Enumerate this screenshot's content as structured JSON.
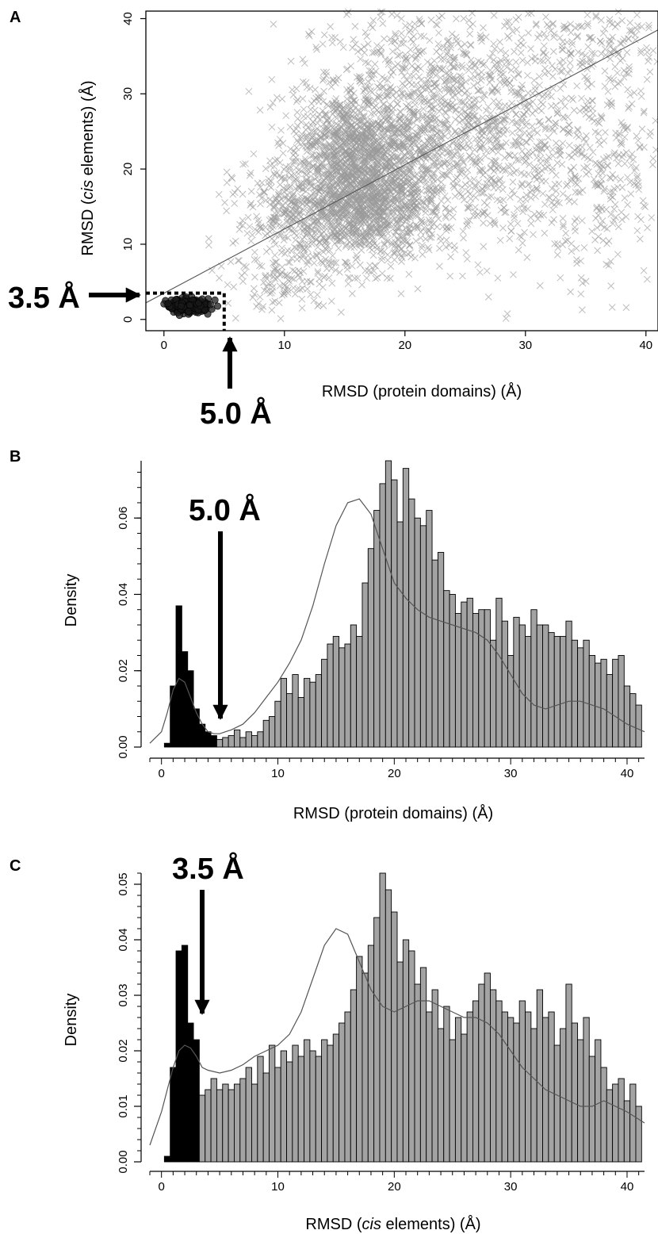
{
  "chart_data": [
    {
      "panel": "A",
      "type": "scatter",
      "xlabel": "RMSD (protein domains) (Å)",
      "ylabel_parts": [
        "RMSD (",
        "cis",
        " elements) (Å)"
      ],
      "xlim": [
        -1.5,
        41
      ],
      "ylim": [
        -1.5,
        41
      ],
      "xticks": [
        0,
        10,
        20,
        30,
        40
      ],
      "yticks": [
        0,
        10,
        20,
        30,
        40
      ],
      "threshold_x": 5.0,
      "threshold_y": 3.5,
      "annot_x": "5.0 Å",
      "annot_y": "3.5 Å",
      "fit_line": {
        "x": [
          -1.5,
          41
        ],
        "y": [
          2.2,
          38.5
        ]
      },
      "series": [
        {
          "marker": "x",
          "color": "#9a9a9a",
          "clusters": [
            {
              "cx": 17,
              "cy": 16,
              "sx": 3.0,
              "sy": 4.0,
              "n": 1300
            },
            {
              "cx": 15.5,
              "cy": 24,
              "sx": 2.5,
              "sy": 3.0,
              "n": 600
            },
            {
              "cx": 20,
              "cy": 30,
              "sx": 4.5,
              "sy": 6.0,
              "n": 550
            },
            {
              "cx": 25,
              "cy": 22,
              "sx": 5.5,
              "sy": 7.0,
              "n": 700
            },
            {
              "cx": 12,
              "cy": 14,
              "sx": 3.0,
              "sy": 3.5,
              "n": 450
            },
            {
              "cx": 30,
              "cy": 28,
              "sx": 6.0,
              "sy": 8.0,
              "n": 400
            },
            {
              "cx": 36,
              "cy": 18,
              "sx": 3.0,
              "sy": 7.0,
              "n": 200
            },
            {
              "cx": 10,
              "cy": 5,
              "sx": 2.5,
              "sy": 2.0,
              "n": 120
            },
            {
              "cx": 36,
              "cy": 37,
              "sx": 4.0,
              "sy": 3.0,
              "n": 150
            }
          ]
        },
        {
          "marker": "o",
          "color": "#1a1a1a",
          "clusters": [
            {
              "cx": 2.0,
              "cy": 1.8,
              "sx": 0.9,
              "sy": 0.45,
              "n": 220
            }
          ]
        }
      ]
    },
    {
      "panel": "B",
      "type": "bar",
      "xlabel": "RMSD (protein domains) (Å)",
      "ylabel": "Density",
      "bin_start": 0.5,
      "bin_width": 0.5,
      "xlim": [
        -1,
        41.5
      ],
      "ylim": [
        0,
        0.075
      ],
      "xticks": [
        0,
        10,
        20,
        30,
        40
      ],
      "yticks": [
        0.0,
        0.02,
        0.04,
        0.06
      ],
      "ytick_labels": [
        "0.00",
        "0.02",
        "0.04",
        "0.06"
      ],
      "threshold": 5.0,
      "annot": "5.0 Å",
      "below_color": "#000000",
      "above_color": "#a3a3a3",
      "values": [
        0.001,
        0.016,
        0.037,
        0.025,
        0.02,
        0.01,
        0.006,
        0.004,
        0.003,
        0.002,
        0.0025,
        0.003,
        0.0045,
        0.0025,
        0.004,
        0.003,
        0.004,
        0.007,
        0.008,
        0.012,
        0.018,
        0.014,
        0.019,
        0.013,
        0.018,
        0.017,
        0.019,
        0.023,
        0.027,
        0.029,
        0.026,
        0.027,
        0.032,
        0.029,
        0.043,
        0.052,
        0.062,
        0.069,
        0.075,
        0.07,
        0.059,
        0.073,
        0.065,
        0.06,
        0.058,
        0.062,
        0.049,
        0.051,
        0.041,
        0.04,
        0.035,
        0.038,
        0.039,
        0.035,
        0.036,
        0.036,
        0.028,
        0.039,
        0.033,
        0.024,
        0.034,
        0.032,
        0.029,
        0.036,
        0.032,
        0.032,
        0.03,
        0.029,
        0.029,
        0.033,
        0.028,
        0.026,
        0.028,
        0.024,
        0.022,
        0.023,
        0.019,
        0.023,
        0.024,
        0.016,
        0.014,
        0.011,
        0.012,
        0.01,
        0.012,
        0.009,
        0.013,
        0.008,
        0.009,
        0.008,
        0.015,
        0.009,
        0.011,
        0.01,
        0.01,
        0.011,
        0.009,
        0.012,
        0.01,
        0.007,
        0.013,
        0.01,
        0.008,
        0.011,
        0.007,
        0.012,
        0.007,
        0.01,
        0.008,
        0.011,
        0.005,
        0.007,
        0.004
      ],
      "density_curve": {
        "x": [
          -1,
          0,
          0.5,
          1,
          1.5,
          2,
          2.5,
          3,
          3.5,
          4,
          4.5,
          5,
          5.5,
          6,
          7,
          8,
          9,
          10,
          11,
          12,
          13,
          14,
          15,
          16,
          17,
          18,
          19,
          20,
          21,
          22,
          23,
          24,
          25,
          26,
          27,
          28,
          29,
          30,
          31,
          32,
          33,
          34,
          35,
          36,
          37,
          38,
          39,
          40,
          41.5
        ],
        "y": [
          0.001,
          0.004,
          0.009,
          0.015,
          0.018,
          0.017,
          0.013,
          0.009,
          0.006,
          0.004,
          0.0035,
          0.0035,
          0.004,
          0.0045,
          0.006,
          0.009,
          0.013,
          0.017,
          0.022,
          0.028,
          0.037,
          0.048,
          0.058,
          0.064,
          0.065,
          0.061,
          0.052,
          0.043,
          0.039,
          0.036,
          0.034,
          0.033,
          0.032,
          0.031,
          0.03,
          0.028,
          0.024,
          0.019,
          0.014,
          0.011,
          0.01,
          0.011,
          0.012,
          0.012,
          0.011,
          0.01,
          0.008,
          0.006,
          0.004
        ]
      }
    },
    {
      "panel": "C",
      "type": "bar",
      "xlabel_parts": [
        "RMSD (",
        "cis",
        " elements) (Å)"
      ],
      "ylabel": "Density",
      "bin_start": 0.5,
      "bin_width": 0.5,
      "xlim": [
        -1,
        41.5
      ],
      "ylim": [
        0,
        0.052
      ],
      "xticks": [
        0,
        10,
        20,
        30,
        40
      ],
      "yticks": [
        0.0,
        0.01,
        0.02,
        0.03,
        0.04,
        0.05
      ],
      "ytick_labels": [
        "0.00",
        "0.01",
        "0.02",
        "0.03",
        "0.04",
        "0.05"
      ],
      "threshold": 3.5,
      "annot": "3.5 Å",
      "below_color": "#000000",
      "above_color": "#a3a3a3",
      "values": [
        0.001,
        0.017,
        0.038,
        0.039,
        0.025,
        0.022,
        0.012,
        0.013,
        0.015,
        0.013,
        0.014,
        0.013,
        0.014,
        0.015,
        0.017,
        0.014,
        0.019,
        0.016,
        0.021,
        0.017,
        0.02,
        0.018,
        0.021,
        0.019,
        0.022,
        0.02,
        0.019,
        0.022,
        0.021,
        0.023,
        0.025,
        0.027,
        0.031,
        0.037,
        0.034,
        0.039,
        0.044,
        0.052,
        0.049,
        0.045,
        0.036,
        0.04,
        0.038,
        0.032,
        0.035,
        0.027,
        0.031,
        0.024,
        0.028,
        0.022,
        0.026,
        0.023,
        0.027,
        0.029,
        0.032,
        0.034,
        0.031,
        0.029,
        0.027,
        0.026,
        0.025,
        0.029,
        0.027,
        0.024,
        0.031,
        0.026,
        0.027,
        0.021,
        0.024,
        0.032,
        0.025,
        0.022,
        0.026,
        0.019,
        0.022,
        0.017,
        0.013,
        0.014,
        0.015,
        0.011,
        0.014,
        0.01,
        0.012,
        0.008,
        0.009,
        0.01,
        0.012,
        0.011,
        0.008,
        0.007,
        0.009,
        0.01,
        0.007,
        0.006,
        0.009,
        0.011,
        0.008,
        0.012,
        0.007,
        0.015,
        0.011,
        0.01,
        0.009,
        0.011,
        0.006,
        0.01,
        0.008,
        0.008,
        0.006,
        0.008,
        0.01,
        0.006,
        0.008
      ],
      "density_curve": {
        "x": [
          -1,
          0,
          0.5,
          1,
          1.5,
          2,
          2.5,
          3,
          3.5,
          4,
          5,
          6,
          7,
          8,
          9,
          10,
          11,
          12,
          13,
          14,
          15,
          16,
          17,
          18,
          19,
          20,
          21,
          22,
          23,
          24,
          25,
          26,
          27,
          28,
          29,
          30,
          31,
          32,
          33,
          34,
          35,
          36,
          37,
          38,
          39,
          40,
          41.5
        ],
        "y": [
          0.003,
          0.009,
          0.013,
          0.017,
          0.02,
          0.021,
          0.0205,
          0.019,
          0.017,
          0.0165,
          0.016,
          0.0165,
          0.0175,
          0.019,
          0.02,
          0.021,
          0.023,
          0.027,
          0.033,
          0.039,
          0.042,
          0.041,
          0.036,
          0.031,
          0.028,
          0.027,
          0.028,
          0.029,
          0.029,
          0.028,
          0.027,
          0.026,
          0.026,
          0.025,
          0.023,
          0.02,
          0.017,
          0.015,
          0.013,
          0.012,
          0.011,
          0.01,
          0.01,
          0.011,
          0.01,
          0.009,
          0.007
        ]
      }
    }
  ]
}
